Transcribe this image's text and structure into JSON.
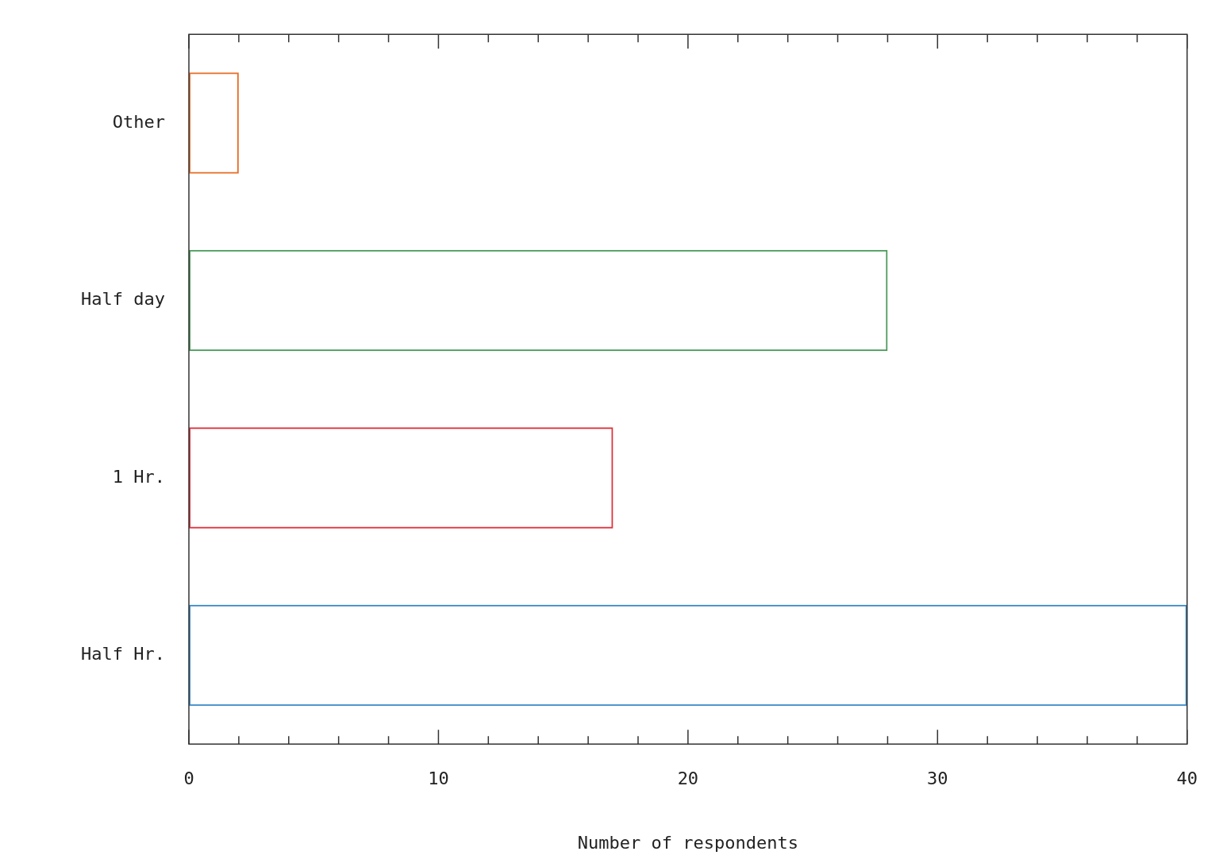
{
  "chart_data": {
    "type": "bar",
    "orientation": "horizontal",
    "xlabel": "Number of respondents",
    "categories": [
      "Other",
      "Half day",
      "1 Hr.",
      "Half Hr."
    ],
    "values": [
      2,
      28,
      17,
      40
    ],
    "colors": [
      "#e8702a",
      "#4a9a5a",
      "#e0303a",
      "#3a8ac8"
    ],
    "xlim": [
      0,
      40
    ],
    "xticks": [
      0,
      {
        "value": 2,
        "label": null
      },
      {
        "value": 4,
        "label": null
      },
      {
        "value": 6,
        "label": null
      },
      {
        "value": 8,
        "label": null
      },
      10,
      {
        "value": 12,
        "label": null
      },
      {
        "value": 14,
        "label": null
      },
      {
        "value": 16,
        "label": null
      },
      {
        "value": 18,
        "label": null
      },
      20,
      {
        "value": 22,
        "label": null
      },
      {
        "value": 24,
        "label": null
      },
      {
        "value": 26,
        "label": null
      },
      {
        "value": 28,
        "label": null
      },
      30,
      {
        "value": 32,
        "label": null
      },
      {
        "value": 34,
        "label": null
      },
      {
        "value": 36,
        "label": null
      },
      {
        "value": 38,
        "label": null
      },
      40
    ],
    "grid": false,
    "legend": false
  }
}
